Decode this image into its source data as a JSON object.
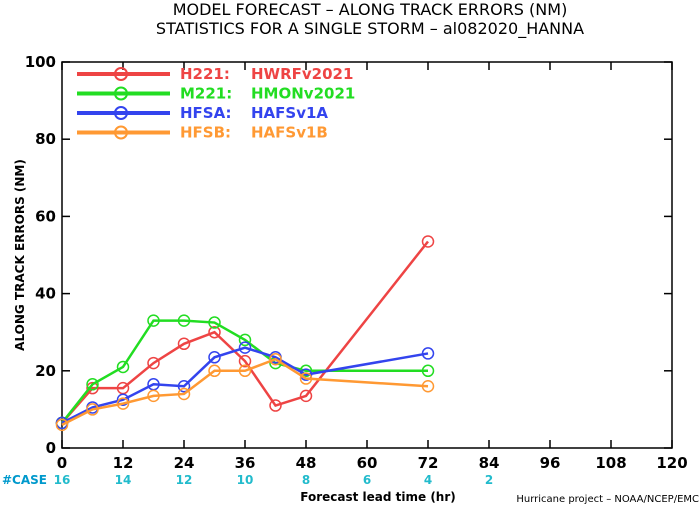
{
  "chart_data": {
    "type": "line",
    "title": "MODEL FORECAST – ALONG TRACK ERRORS (NM)",
    "subtitle": "STATISTICS FOR A SINGLE STORM – al082020_HANNA",
    "xlabel": "Forecast lead time (hr)",
    "ylabel": "ALONG TRACK ERRORS (NM)",
    "xlim": [
      0,
      120
    ],
    "ylim": [
      0,
      100
    ],
    "xticks": [
      "0",
      "12",
      "24",
      "36",
      "48",
      "60",
      "72",
      "84",
      "96",
      "108",
      "120"
    ],
    "yticks": [
      "0",
      "20",
      "40",
      "60",
      "80",
      "100"
    ],
    "grid": false,
    "legend_position": "top-left",
    "case_label": "#CASE",
    "case_counts": [
      {
        "x": 0,
        "label": "16"
      },
      {
        "x": 12,
        "label": "14"
      },
      {
        "x": 24,
        "label": "12"
      },
      {
        "x": 36,
        "label": "10"
      },
      {
        "x": 48,
        "label": "8"
      },
      {
        "x": 60,
        "label": "6"
      },
      {
        "x": 72,
        "label": "4"
      },
      {
        "x": 84,
        "label": "2"
      }
    ],
    "series": [
      {
        "name": "H221:",
        "desc": "HWRFv2021",
        "color": "#ee4444",
        "x": [
          0,
          6,
          12,
          18,
          24,
          30,
          36,
          42,
          48,
          72
        ],
        "y": [
          6.5,
          15.5,
          15.5,
          22,
          27,
          30,
          22.5,
          11,
          13.5,
          53.5
        ]
      },
      {
        "name": "M221:",
        "desc": "HMONv2021",
        "color": "#22dd22",
        "x": [
          0,
          6,
          12,
          18,
          24,
          30,
          36,
          42,
          48,
          72
        ],
        "y": [
          6.5,
          16.5,
          21,
          33,
          33,
          32.5,
          28,
          22,
          20,
          20
        ]
      },
      {
        "name": "HFSA:",
        "desc": "HAFSv1A",
        "color": "#3344ee",
        "x": [
          0,
          6,
          12,
          18,
          24,
          30,
          36,
          42,
          48,
          72
        ],
        "y": [
          6.5,
          10.5,
          12.5,
          16.5,
          16,
          23.5,
          26,
          23.5,
          19,
          24.5
        ]
      },
      {
        "name": "HFSB:",
        "desc": "HAFSv1B",
        "color": "#ff9933",
        "x": [
          0,
          6,
          12,
          18,
          24,
          30,
          36,
          42,
          48,
          72
        ],
        "y": [
          6,
          10,
          11.5,
          13.5,
          14,
          20,
          20,
          23,
          18,
          16
        ]
      }
    ],
    "colors": {
      "case_label": "#0099cc",
      "case_counts": "#22bbcc",
      "axes": "#000000"
    },
    "credit": "Hurricane project – NOAA/NCEP/EMC"
  }
}
